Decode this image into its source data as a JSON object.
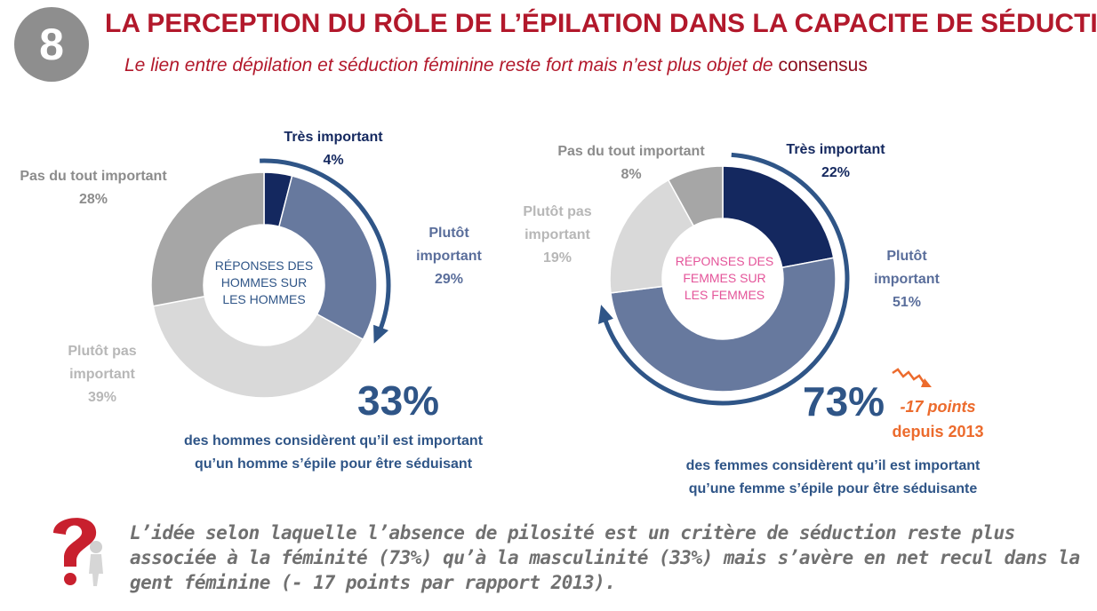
{
  "header": {
    "badge": "8",
    "title": "LA PERCEPTION DU RÔLE DE L’ÉPILATION DANS LA CAPACITE DE SÉDUCTION",
    "subtitle_main": "Le lien entre dépilation et séduction féminine reste fort mais n’est plus objet de ",
    "subtitle_end": "consensus"
  },
  "colors": {
    "tres_important": "#14285f",
    "plutot_important": "#67799e",
    "plutot_pas": "#d9d9d9",
    "pas_du_tout": "#a6a6a6",
    "arrow": "#2f5587",
    "title": "#b2182b",
    "trend": "#ec6b2d",
    "women_center": "#e4559a",
    "men_center": "#2f5587"
  },
  "chart_data": [
    {
      "type": "pie",
      "center_label": [
        "RÉPONSES DES",
        "HOMMES SUR",
        "LES HOMMES"
      ],
      "slices": [
        {
          "label": "Très important",
          "value": 4,
          "value_label": "4%"
        },
        {
          "label": "Plutôt important",
          "label_lines": [
            "Plutôt",
            "important"
          ],
          "value": 29,
          "value_label": "29%"
        },
        {
          "label": "Plutôt pas important",
          "label_lines": [
            "Plutôt pas",
            "important"
          ],
          "value": 39,
          "value_label": "39%"
        },
        {
          "label": "Pas du tout important",
          "value": 28,
          "value_label": "28%"
        }
      ],
      "highlight": {
        "value": "33%",
        "caption": [
          "des hommes considèrent qu’il est important",
          "qu’un homme s’épile pour être séduisant"
        ]
      }
    },
    {
      "type": "pie",
      "center_label": [
        "RÉPONSES DES",
        "FEMMES SUR",
        "LES FEMMES"
      ],
      "slices": [
        {
          "label": "Très important",
          "value": 22,
          "value_label": "22%"
        },
        {
          "label": "Plutôt important",
          "label_lines": [
            "Plutôt",
            "important"
          ],
          "value": 51,
          "value_label": "51%"
        },
        {
          "label": "Plutôt pas important",
          "label_lines": [
            "Plutôt pas",
            "important"
          ],
          "value": 19,
          "value_label": "19%"
        },
        {
          "label": "Pas du tout important",
          "value": 8,
          "value_label": "8%"
        }
      ],
      "highlight": {
        "value": "73%",
        "caption": [
          "des femmes considèrent qu’il est important",
          "qu’une femme s’épile pour être séduisante"
        ],
        "trend": {
          "points": "-17 points",
          "since": "depuis 2013"
        }
      }
    }
  ],
  "note": "L’idée selon laquelle l’absence de pilosité est un critère de séduction reste plus associée à la féminité (73%) qu’à la masculinité (33%) mais s’avère en net recul dans la gent féminine (- 17 points par rapport 2013)."
}
